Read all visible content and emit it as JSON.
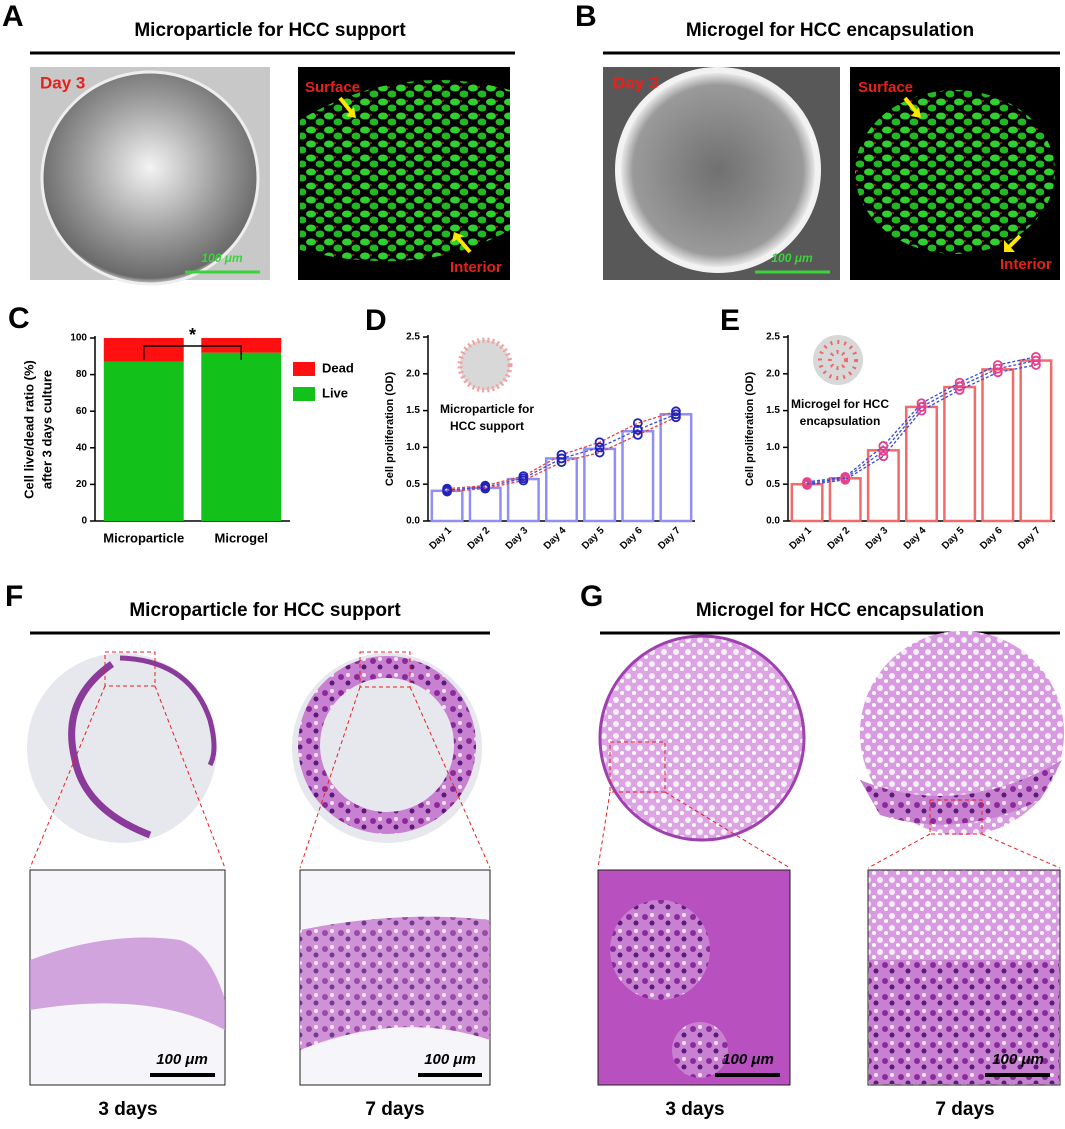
{
  "figure": {
    "A": {
      "label": "A",
      "title": "Microparticle for HCC support",
      "day": "Day 3",
      "scale": "100 μm",
      "surface": "Surface",
      "interior": "Interior"
    },
    "B": {
      "label": "B",
      "title": "Microgel for HCC encapsulation",
      "day": "Day 3",
      "scale": "100 μm",
      "surface": "Surface",
      "interior": "Interior"
    },
    "C": {
      "label": "C"
    },
    "D": {
      "label": "D"
    },
    "E": {
      "label": "E"
    },
    "F": {
      "label": "F",
      "title": "Microparticle for HCC support",
      "scale_left": "100 μm",
      "scale_right": "100 μm",
      "caption_left": "3 days",
      "caption_right": "7 days"
    },
    "G": {
      "label": "G",
      "title": "Microgel for HCC encapsulation",
      "scale_left": "100 μm",
      "scale_right": "100 μm",
      "caption_left": "3 days",
      "caption_right": "7 days"
    }
  },
  "chart_data": [
    {
      "type": "stacked_bar",
      "ylabel": [
        "Cell live/dead ratio (%)",
        "after 3 days culture"
      ],
      "categories": [
        "Microparticle",
        "Microgel"
      ],
      "series": [
        {
          "name": "Live",
          "color": "#12c21a",
          "values": [
            87,
            92
          ]
        },
        {
          "name": "Dead",
          "color": "#ff1010",
          "values": [
            13,
            8
          ]
        }
      ],
      "ylim": [
        0,
        100
      ],
      "yticks": [
        0,
        20,
        40,
        60,
        80,
        100
      ],
      "annotation": "*"
    },
    {
      "type": "bar",
      "ylabel": "Cell proliferation (OD)",
      "inset": [
        "Microparticle for",
        "HCC support"
      ],
      "categories": [
        "Day 1",
        "Day 2",
        "Day 3",
        "Day 4",
        "Day 5",
        "Day 6",
        "Day 7"
      ],
      "values": [
        0.41,
        0.45,
        0.57,
        0.85,
        0.98,
        1.22,
        1.45
      ],
      "color": "#8f8ff5",
      "point_color": "#2323b8",
      "replicates": [
        {
          "color": "#e84040",
          "values": [
            0.4,
            0.44,
            0.55,
            0.8,
            0.93,
            1.17,
            1.41
          ]
        },
        {
          "color": "#3a4ad8",
          "values": [
            0.42,
            0.46,
            0.58,
            0.85,
            1.0,
            1.24,
            1.45
          ]
        },
        {
          "color": "#e84040",
          "values": [
            0.44,
            0.48,
            0.61,
            0.9,
            1.07,
            1.33,
            1.49
          ]
        }
      ],
      "ylim": [
        0,
        2.5
      ],
      "yticks": [
        {
          "value": 0,
          "label": "0.0"
        },
        0.5,
        {
          "value": 1,
          "label": "1.0"
        },
        1.5,
        {
          "value": 2,
          "label": "2.0"
        },
        2.5
      ]
    },
    {
      "type": "bar",
      "ylabel": "Cell proliferation (OD)",
      "inset": [
        "Microgel for HCC",
        "encapsulation"
      ],
      "categories": [
        "Day 1",
        "Day 2",
        "Day 3",
        "Day 4",
        "Day 5",
        "Day 6",
        "Day 7"
      ],
      "values": [
        0.5,
        0.58,
        0.96,
        1.55,
        1.82,
        2.06,
        2.18
      ],
      "color": "#f26a6a",
      "point_color": "#e8408a",
      "replicates": [
        {
          "color": "#3a4ad8",
          "values": [
            0.49,
            0.56,
            0.88,
            1.5,
            1.78,
            2.02,
            2.12
          ]
        },
        {
          "color": "#3a4ad8",
          "values": [
            0.51,
            0.58,
            0.95,
            1.55,
            1.83,
            2.07,
            2.18
          ]
        },
        {
          "color": "#3a4ad8",
          "values": [
            0.53,
            0.6,
            1.02,
            1.6,
            1.88,
            2.12,
            2.23
          ]
        }
      ],
      "ylim": [
        0,
        2.5
      ],
      "yticks": [
        {
          "value": 0,
          "label": "0.0"
        },
        0.5,
        {
          "value": 1,
          "label": "1.0"
        },
        1.5,
        {
          "value": 2,
          "label": "2.0"
        },
        2.5
      ]
    }
  ]
}
